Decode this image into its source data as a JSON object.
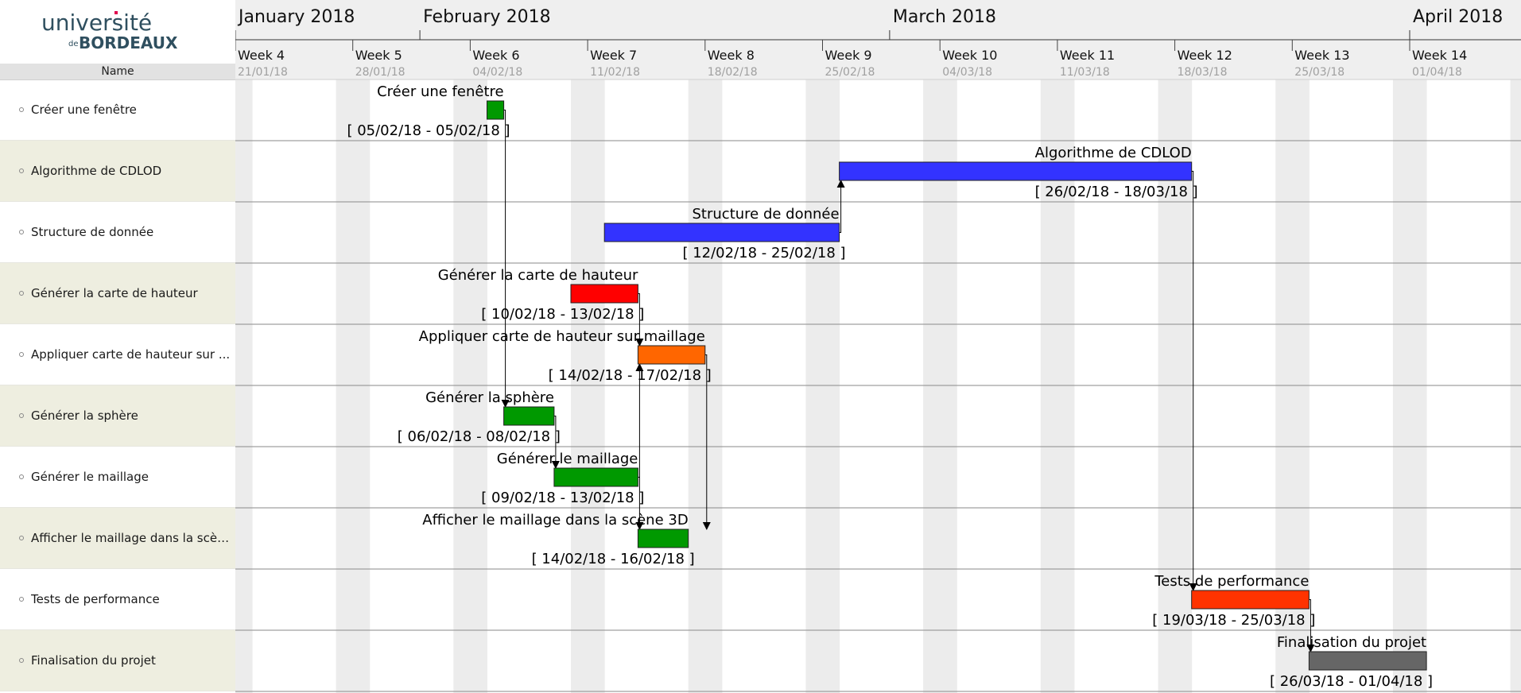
{
  "logo": {
    "line1": "université",
    "line2_small": "de",
    "line2": "BORDEAUX"
  },
  "sidebar": {
    "header": "Name",
    "tasks": [
      "Créer une fenêtre",
      "Algorithme de CDLOD",
      "Structure de donnée",
      "Générer la carte de hauteur",
      "Appliquer carte de hauteur sur ...",
      "Générer la sphère",
      "Générer le maillage",
      "Afficher le maillage dans la scèn...",
      "Tests de performance",
      "Finalisation du projet"
    ]
  },
  "chart_data": {
    "type": "gantt",
    "date_start": "2018-01-21",
    "date_end": "2018-04-07",
    "months": [
      {
        "label": "January 2018",
        "date": "2018-01-21"
      },
      {
        "label": "February 2018",
        "date": "2018-02-01"
      },
      {
        "label": "March 2018",
        "date": "2018-03-01"
      },
      {
        "label": "April 2018",
        "date": "2018-04-01"
      }
    ],
    "weeks": [
      {
        "label": "Week 4",
        "date_label": "21/01/18",
        "date": "2018-01-21"
      },
      {
        "label": "Week 5",
        "date_label": "28/01/18",
        "date": "2018-01-28"
      },
      {
        "label": "Week 6",
        "date_label": "04/02/18",
        "date": "2018-02-04"
      },
      {
        "label": "Week 7",
        "date_label": "11/02/18",
        "date": "2018-02-11"
      },
      {
        "label": "Week 8",
        "date_label": "18/02/18",
        "date": "2018-02-18"
      },
      {
        "label": "Week 9",
        "date_label": "25/02/18",
        "date": "2018-02-25"
      },
      {
        "label": "Week 10",
        "date_label": "04/03/18",
        "date": "2018-03-04"
      },
      {
        "label": "Week 11",
        "date_label": "11/03/18",
        "date": "2018-03-11"
      },
      {
        "label": "Week 12",
        "date_label": "18/03/18",
        "date": "2018-03-18"
      },
      {
        "label": "Week 13",
        "date_label": "25/03/18",
        "date": "2018-03-25"
      },
      {
        "label": "Week 14",
        "date_label": "01/04/18",
        "date": "2018-04-01"
      }
    ],
    "tasks": [
      {
        "name": "Créer une fenêtre",
        "start": "2018-02-05",
        "end": "2018-02-05",
        "range_label": "[ 05/02/18 - 05/02/18 ]",
        "color": "#009900"
      },
      {
        "name": "Algorithme de CDLOD",
        "start": "2018-02-26",
        "end": "2018-03-18",
        "range_label": "[ 26/02/18 - 18/03/18 ]",
        "color": "#3333ff"
      },
      {
        "name": "Structure de donnée",
        "start": "2018-02-12",
        "end": "2018-02-25",
        "range_label": "[ 12/02/18 - 25/02/18 ]",
        "color": "#3333ff"
      },
      {
        "name": "Générer la carte de hauteur",
        "start": "2018-02-10",
        "end": "2018-02-13",
        "range_label": "[ 10/02/18 - 13/02/18 ]",
        "color": "#ff0000"
      },
      {
        "name": "Appliquer carte de hauteur sur maillage",
        "start": "2018-02-14",
        "end": "2018-02-17",
        "range_label": "[ 14/02/18 - 17/02/18 ]",
        "color": "#ff6600"
      },
      {
        "name": "Générer la sphère",
        "start": "2018-02-06",
        "end": "2018-02-08",
        "range_label": "[ 06/02/18 - 08/02/18 ]",
        "color": "#009900"
      },
      {
        "name": "Générer le maillage",
        "start": "2018-02-09",
        "end": "2018-02-13",
        "range_label": "[ 09/02/18 - 13/02/18 ]",
        "color": "#009900"
      },
      {
        "name": "Afficher le maillage dans la scène 3D",
        "start": "2018-02-14",
        "end": "2018-02-16",
        "range_label": "[ 14/02/18 - 16/02/18 ]",
        "color": "#009900"
      },
      {
        "name": "Tests de performance",
        "start": "2018-03-19",
        "end": "2018-03-25",
        "range_label": "[ 19/03/18 - 25/03/18 ]",
        "color": "#ff3300"
      },
      {
        "name": "Finalisation du projet",
        "start": "2018-03-26",
        "end": "2018-04-01",
        "range_label": "[ 26/03/18 - 01/04/18 ]",
        "color": "#666666"
      }
    ],
    "dependencies": [
      {
        "from": 0,
        "to": 5
      },
      {
        "from": 5,
        "to": 6
      },
      {
        "from": 6,
        "to": 4
      },
      {
        "from": 3,
        "to": 4
      },
      {
        "from": 4,
        "to": 7
      },
      {
        "from": 6,
        "to": 7
      },
      {
        "from": 2,
        "to": 1
      },
      {
        "from": 1,
        "to": 8
      },
      {
        "from": 8,
        "to": 9
      }
    ],
    "colors": {
      "weekend": "#ececec",
      "header_bg": "#efefef",
      "row_line": "#8a8a8a"
    }
  }
}
